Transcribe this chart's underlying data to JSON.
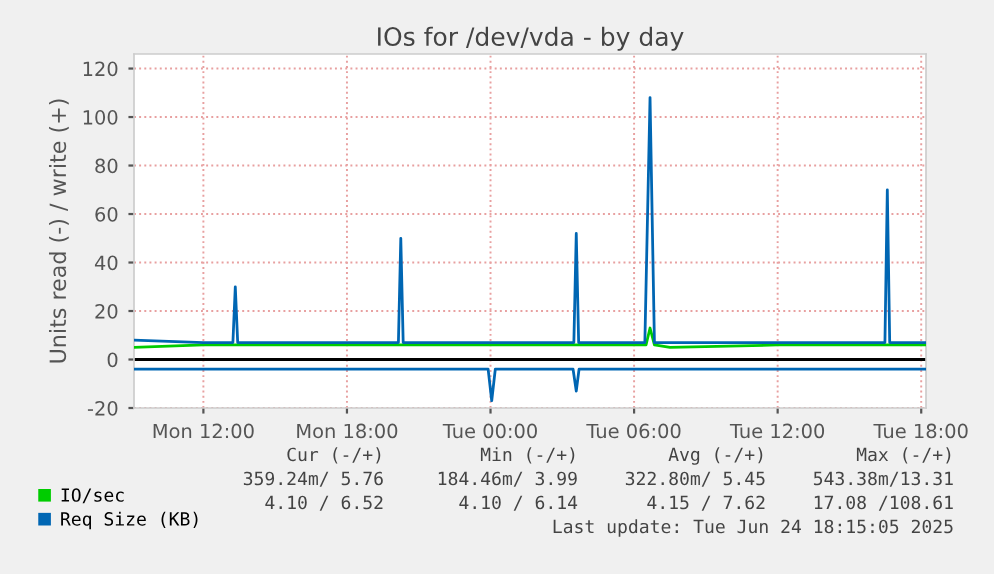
{
  "chart_data": {
    "type": "line",
    "title": "IOs for /dev/vda - by day",
    "ylabel": "Units read (-) / write (+)",
    "xlim": [
      "2025-06-23T09:06",
      "2025-06-24T18:12"
    ],
    "xticks": [
      {
        "value": "2025-06-23T12:00",
        "label": "Mon 12:00"
      },
      {
        "value": "2025-06-23T18:00",
        "label": "Mon 18:00"
      },
      {
        "value": "2025-06-24T00:00",
        "label": "Tue 00:00"
      },
      {
        "value": "2025-06-24T06:00",
        "label": "Tue 06:00"
      },
      {
        "value": "2025-06-24T12:00",
        "label": "Tue 12:00"
      },
      {
        "value": "2025-06-24T18:00",
        "label": "Tue 18:00"
      }
    ],
    "ylim": [
      -20,
      126
    ],
    "yticks": [
      -20,
      0,
      20,
      40,
      60,
      80,
      100,
      120
    ],
    "grid": true,
    "legend": "bottom",
    "marker": "none",
    "line_style": "solid",
    "ref_lines": [
      {
        "axis": "y",
        "value": 0,
        "color": "#000000"
      }
    ],
    "series": [
      {
        "name": "IO/sec",
        "color": "#00cc00",
        "x": [
          "2025-06-23T09:06",
          "2025-06-23T12:00",
          "2025-06-23T15:00",
          "2025-06-23T18:00",
          "2025-06-23T21:00",
          "2025-06-24T00:00",
          "2025-06-24T03:00",
          "2025-06-24T06:00",
          "2025-06-24T06:30",
          "2025-06-24T06:40",
          "2025-06-24T06:51",
          "2025-06-24T07:30",
          "2025-06-24T12:00",
          "2025-06-24T15:00",
          "2025-06-24T18:12"
        ],
        "values": [
          5,
          6,
          6,
          6,
          6,
          6,
          6,
          6,
          6,
          13,
          6,
          5,
          6,
          6,
          6
        ]
      },
      {
        "name": "Req Size (KB)",
        "color": "#0066b3",
        "x": [
          "2025-06-23T09:06",
          "2025-06-23T12:00",
          "2025-06-23T13:14",
          "2025-06-23T13:20",
          "2025-06-23T13:26",
          "2025-06-23T18:00",
          "2025-06-23T20:09",
          "2025-06-23T20:15",
          "2025-06-23T20:21",
          "2025-06-24T00:00",
          "2025-06-24T03:29",
          "2025-06-24T03:35",
          "2025-06-24T03:41",
          "2025-06-24T06:27",
          "2025-06-24T06:40",
          "2025-06-24T06:51",
          "2025-06-24T12:00",
          "2025-06-24T16:29",
          "2025-06-24T16:35",
          "2025-06-24T16:41",
          "2025-06-24T18:12"
        ],
        "values": [
          8,
          7,
          7,
          30,
          7,
          7,
          7,
          50,
          7,
          7,
          7,
          52,
          7,
          7,
          108,
          7,
          7,
          7,
          70,
          7,
          7
        ]
      },
      {
        "color": "#0066b3",
        "x": [
          "2025-06-23T09:06",
          "2025-06-23T18:00",
          "2025-06-23T23:54",
          "2025-06-24T00:03",
          "2025-06-24T00:12",
          "2025-06-24T03:27",
          "2025-06-24T03:35",
          "2025-06-24T03:42",
          "2025-06-24T18:12"
        ],
        "values": [
          -4,
          -4,
          -4,
          -17,
          -4,
          -4,
          -13,
          -4,
          -4
        ]
      }
    ],
    "annotations": [
      "Cur (-/+)",
      "Min (-/+)",
      "Avg (-/+)",
      "Max (-/+)",
      "359.24m/ 5.76",
      "184.46m/ 3.99",
      "322.80m/ 5.45",
      "543.38m/13.31",
      "4.10 / 6.52",
      "4.10 / 6.14",
      "4.15 / 7.62",
      "17.08 /108.61",
      "Last update: Tue Jun 24 18:15:05 2025"
    ]
  }
}
